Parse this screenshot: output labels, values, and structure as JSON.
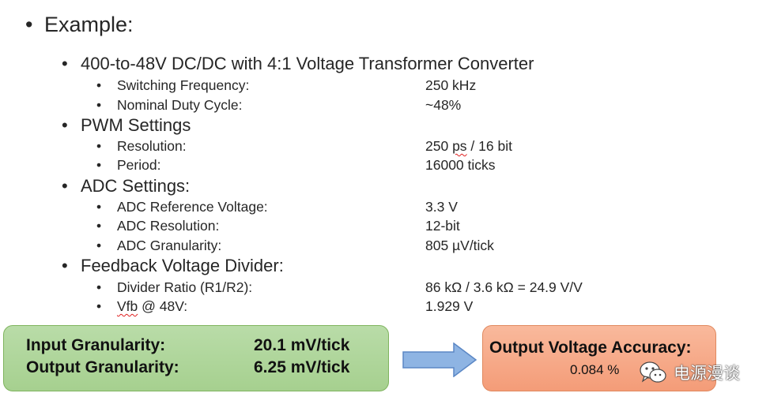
{
  "heading": "Example:",
  "sections": [
    {
      "title": "400-to-48V DC/DC with 4:1 Voltage Transformer Converter",
      "items": [
        {
          "label": "Switching Frequency:",
          "value": "250 kHz"
        },
        {
          "label": "Nominal Duty Cycle:",
          "value": "~48%"
        }
      ]
    },
    {
      "title": "PWM Settings",
      "items": [
        {
          "label": "Resolution:",
          "value_a": "250 ",
          "value_ps": "ps",
          "value_b": " / 16 bit"
        },
        {
          "label": "Period:",
          "value": "16000 ticks"
        }
      ]
    },
    {
      "title": "ADC Settings:",
      "items": [
        {
          "label": "ADC Reference Voltage:",
          "value": "3.3 V"
        },
        {
          "label": "ADC Resolution:",
          "value": "12-bit"
        },
        {
          "label": "ADC Granularity:",
          "value": "805 µV/tick"
        }
      ]
    },
    {
      "title": "Feedback Voltage Divider:",
      "items": [
        {
          "label": "Divider Ratio (R1/R2):",
          "value": "86 kΩ / 3.6 kΩ = 24.9 V/V"
        },
        {
          "label_a": "Vfb",
          "label_b": " @ 48V:",
          "value": "1.929 V"
        }
      ]
    }
  ],
  "result_box": {
    "input_label": "Input Granularity:",
    "input_value": "20.1 mV/tick",
    "output_label": "Output Granularity:",
    "output_value": "6.25 mV/tick"
  },
  "accuracy_box": {
    "title": "Output Voltage Accuracy:",
    "value": "0.084 %"
  },
  "watermark": {
    "text": "电源漫谈",
    "icon": "wechat-icon"
  },
  "colors": {
    "green_box": "#a9d18e",
    "orange_box": "#f4b183",
    "arrow": "#8eb4e3"
  }
}
